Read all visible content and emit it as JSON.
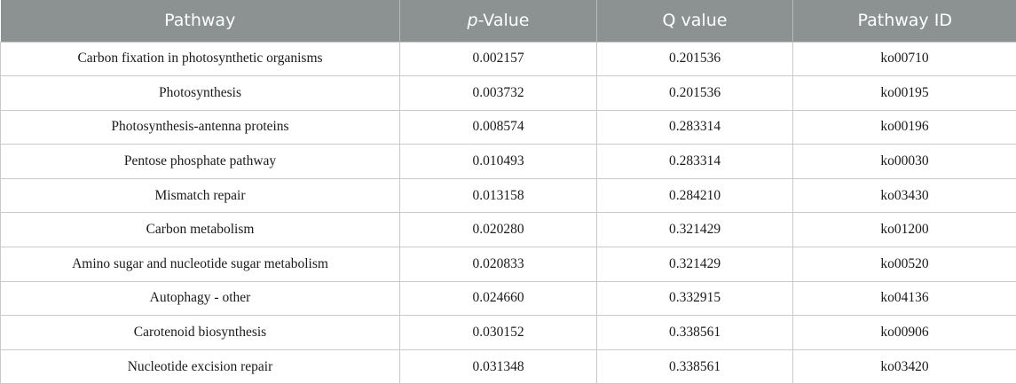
{
  "table": {
    "headers": {
      "pathway": "Pathway",
      "p_value_prefix": "p",
      "p_value_suffix": "-Value",
      "q_value": "Q value",
      "pathway_id": "Pathway ID"
    },
    "rows": [
      {
        "pathway": "Carbon fixation in photosynthetic organisms",
        "p_value": "0.002157",
        "q_value": "0.201536",
        "pathway_id": "ko00710"
      },
      {
        "pathway": "Photosynthesis",
        "p_value": "0.003732",
        "q_value": "0.201536",
        "pathway_id": "ko00195"
      },
      {
        "pathway": "Photosynthesis-antenna proteins",
        "p_value": "0.008574",
        "q_value": "0.283314",
        "pathway_id": "ko00196"
      },
      {
        "pathway": "Pentose phosphate pathway",
        "p_value": "0.010493",
        "q_value": "0.283314",
        "pathway_id": "ko00030"
      },
      {
        "pathway": "Mismatch repair",
        "p_value": "0.013158",
        "q_value": "0.284210",
        "pathway_id": "ko03430"
      },
      {
        "pathway": "Carbon metabolism",
        "p_value": "0.020280",
        "q_value": "0.321429",
        "pathway_id": "ko01200"
      },
      {
        "pathway": "Amino sugar and nucleotide sugar metabolism",
        "p_value": "0.020833",
        "q_value": "0.321429",
        "pathway_id": "ko00520"
      },
      {
        "pathway": "Autophagy - other",
        "p_value": "0.024660",
        "q_value": "0.332915",
        "pathway_id": "ko04136"
      },
      {
        "pathway": "Carotenoid biosynthesis",
        "p_value": "0.030152",
        "q_value": "0.338561",
        "pathway_id": "ko00906"
      },
      {
        "pathway": "Nucleotide excision repair",
        "p_value": "0.031348",
        "q_value": "0.338561",
        "pathway_id": "ko03420"
      }
    ]
  },
  "colors": {
    "header_background": "#8c9191",
    "header_text": "#ffffff",
    "grid_line": "#c9c9c9"
  }
}
